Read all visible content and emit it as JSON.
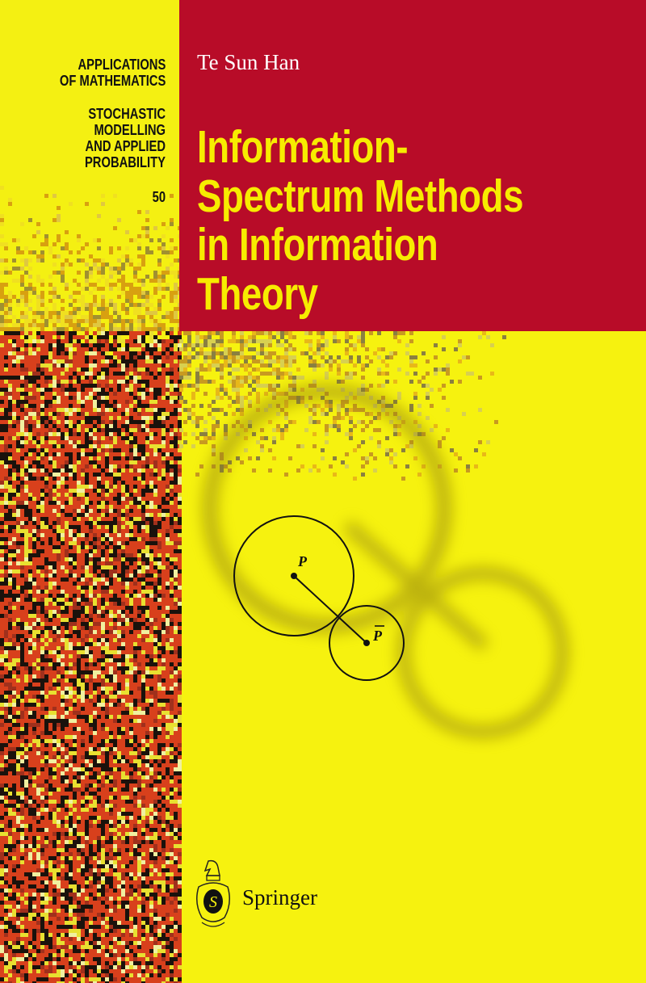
{
  "series": {
    "lines": [
      "APPLICATIONS",
      "OF MATHEMATICS"
    ],
    "sub_lines": [
      "STOCHASTIC",
      "MODELLING",
      "AND APPLIED",
      "PROBABILITY"
    ],
    "volume": "50"
  },
  "author": "Te Sun Han",
  "title_lines": [
    "Information-",
    "Spectrum Methods",
    "in Information",
    "Theory"
  ],
  "diagram": {
    "label_p": "P",
    "label_pbar": "P"
  },
  "publisher": {
    "name": "Springer",
    "logo_text": "S"
  },
  "colors": {
    "red": "#b80c28",
    "yellow": "#f6f20f",
    "title": "#f7ec00"
  }
}
